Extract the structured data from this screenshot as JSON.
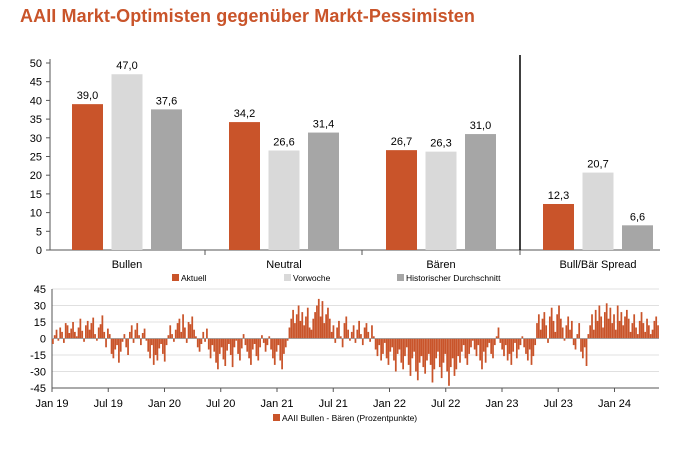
{
  "title": "AAII Markt-Optimisten gegenüber Markt-Pessimisten",
  "colors": {
    "title": "#c9542a",
    "aktuell": "#c9542a",
    "vorwoche": "#d9d9d9",
    "historisch": "#a6a6a6",
    "spread": "#c9542a",
    "axis": "#555555",
    "grid": "#e0e0e0",
    "text": "#000000"
  },
  "chart_data": [
    {
      "type": "bar",
      "title": "AAII Markt-Optimisten gegenüber Markt-Pessimisten",
      "categories": [
        "Bullen",
        "Neutral",
        "Bären",
        "Bull/Bär Spread"
      ],
      "series": [
        {
          "name": "Aktuell",
          "values": [
            39.0,
            34.2,
            26.7,
            12.3
          ]
        },
        {
          "name": "Vorwoche",
          "values": [
            47.0,
            26.6,
            26.3,
            20.7
          ]
        },
        {
          "name": "Historischer Durchschnitt",
          "values": [
            37.6,
            31.4,
            31.0,
            6.6
          ]
        }
      ],
      "value_labels": [
        [
          "39,0",
          "34,2",
          "26,7",
          "12,3"
        ],
        [
          "47,0",
          "26,6",
          "26,3",
          "20,7"
        ],
        [
          "37,6",
          "31,4",
          "31,0",
          "6,6"
        ]
      ],
      "ylim": [
        0,
        50
      ],
      "yticks": [
        0,
        5,
        10,
        15,
        20,
        25,
        30,
        35,
        40,
        45,
        50
      ],
      "ytick_labels": [
        "0",
        "5",
        "10",
        "15",
        "20",
        "25",
        "30",
        "35",
        "40",
        "45",
        "50"
      ],
      "legend_position": "bottom"
    },
    {
      "type": "bar",
      "title": "",
      "series_name": "AAII Bullen - Bären (Prozentpunkte)",
      "x_start": "2019-01",
      "x_end": "2024-06",
      "xticks": [
        "Jan 19",
        "Jul 19",
        "Jan 20",
        "Jul 20",
        "Jan 21",
        "Jul 21",
        "Jan 22",
        "Jul 22",
        "Jan 23",
        "Jul 23",
        "Jan 24"
      ],
      "ylim": [
        -45,
        45
      ],
      "yticks": [
        -45,
        -30,
        -15,
        0,
        15,
        30,
        45
      ],
      "ytick_labels": [
        "-45",
        "-30",
        "-15",
        "0",
        "15",
        "30",
        "45"
      ],
      "weekly_values": [
        -5,
        3,
        8,
        -2,
        10,
        6,
        -4,
        14,
        12,
        5,
        9,
        15,
        6,
        2,
        10,
        18,
        7,
        -3,
        12,
        16,
        8,
        14,
        19,
        4,
        -2,
        10,
        13,
        21,
        6,
        -8,
        9,
        4,
        -14,
        -18,
        -10,
        -6,
        -22,
        -12,
        -3,
        4,
        -8,
        -15,
        6,
        12,
        -4,
        8,
        14,
        3,
        -6,
        5,
        9,
        -2,
        -12,
        -18,
        -6,
        -24,
        -15,
        -20,
        -9,
        -5,
        -14,
        -21,
        -6,
        3,
        12,
        4,
        -3,
        8,
        14,
        18,
        6,
        22,
        10,
        -4,
        15,
        13,
        20,
        8,
        2,
        -8,
        -12,
        -5,
        6,
        -3,
        9,
        -10,
        -18,
        -6,
        -12,
        -22,
        -28,
        -14,
        -8,
        -19,
        -25,
        -11,
        -5,
        -15,
        -26,
        -8,
        -2,
        -14,
        -20,
        -9,
        4,
        -6,
        -12,
        -18,
        -24,
        -10,
        -5,
        -16,
        -20,
        -8,
        3,
        -4,
        -12,
        -6,
        2,
        -10,
        -18,
        -24,
        -12,
        -6,
        -20,
        -28,
        -14,
        -8,
        -2,
        10,
        18,
        26,
        14,
        22,
        30,
        16,
        24,
        12,
        20,
        28,
        10,
        8,
        18,
        24,
        30,
        36,
        20,
        34,
        14,
        22,
        28,
        18,
        6,
        12,
        -4,
        10,
        16,
        2,
        -8,
        14,
        20,
        8,
        -2,
        6,
        12,
        -4,
        8,
        16,
        4,
        -6,
        10,
        14,
        6,
        -3,
        12,
        2,
        -10,
        -16,
        -6,
        -20,
        -14,
        -4,
        -18,
        -24,
        -12,
        -8,
        -20,
        -30,
        -14,
        -10,
        -22,
        -28,
        -16,
        -8,
        -24,
        -34,
        -18,
        -12,
        -30,
        -38,
        -22,
        -16,
        -26,
        -32,
        -20,
        -14,
        -24,
        -40,
        -28,
        -18,
        -12,
        -26,
        -36,
        -22,
        -14,
        -30,
        -43,
        -26,
        -18,
        -34,
        -28,
        -16,
        -22,
        -12,
        -6,
        -18,
        -24,
        -14,
        -8,
        -2,
        -10,
        -16,
        -6,
        -20,
        -28,
        -12,
        -22,
        -8,
        -4,
        -14,
        -18,
        -6,
        2,
        10,
        -4,
        -10,
        -16,
        -6,
        -20,
        -14,
        -24,
        -12,
        -4,
        -18,
        -10,
        -6,
        2,
        -8,
        -14,
        -20,
        -10,
        -24,
        -16,
        -6,
        14,
        22,
        8,
        18,
        24,
        12,
        -4,
        20,
        28,
        16,
        6,
        22,
        30,
        18,
        10,
        -2,
        12,
        20,
        8,
        16,
        -6,
        -10,
        4,
        14,
        -12,
        -18,
        -8,
        -25,
        4,
        12,
        22,
        8,
        26,
        16,
        30,
        20,
        10,
        24,
        32,
        18,
        28,
        14,
        22,
        8,
        30,
        16,
        24,
        12,
        20,
        26,
        18,
        6,
        14,
        22,
        10,
        4,
        16,
        24,
        14,
        6,
        18,
        12,
        4,
        8,
        16,
        20,
        12
      ]
    }
  ],
  "legend": [
    {
      "label": "Aktuell",
      "color_key": "aktuell"
    },
    {
      "label": "Vorwoche",
      "color_key": "vorwoche"
    },
    {
      "label": "Historischer Durchschnitt",
      "color_key": "historisch"
    }
  ],
  "spread_legend": {
    "label": "AAII Bullen - Bären (Prozentpunkte)"
  }
}
